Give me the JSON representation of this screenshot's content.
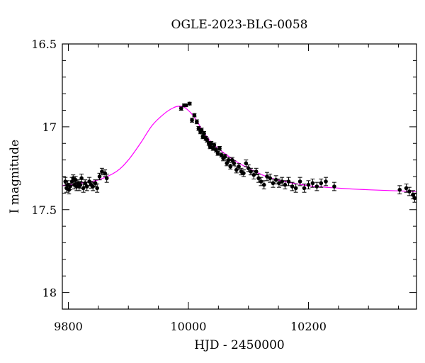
{
  "chart_data": {
    "type": "scatter",
    "title": "OGLE-2023-BLG-0058",
    "xlabel": "HJD - 2450000",
    "ylabel": "I magnitude",
    "xlim": [
      9790,
      10380
    ],
    "ylim": [
      18.1,
      16.5
    ],
    "y_inverted": true,
    "xticks": [
      9800,
      10000,
      10200
    ],
    "xtick_labels": [
      "9800",
      "10000",
      "10200"
    ],
    "yticks": [
      16.5,
      17,
      17.5,
      18
    ],
    "ytick_labels": [
      "16.5",
      "17",
      "17.5",
      "18"
    ],
    "grid": false,
    "colors": {
      "data": "#000000",
      "model": "#ff00ff"
    },
    "series": [
      {
        "kind": "observations",
        "x": [
          9795,
          9797,
          9799,
          9801,
          9803,
          9806,
          9808,
          9810,
          9812,
          9814,
          9816,
          9818,
          9820,
          9822,
          9825,
          9828,
          9831,
          9835,
          9838,
          9841,
          9845,
          9848,
          9852,
          9856,
          9861,
          9864,
          9988,
          9993,
          9996,
          10002,
          10006,
          10010,
          10014,
          10017,
          10020,
          10022,
          10024,
          10026,
          10029,
          10031,
          10034,
          10036,
          10038,
          10041,
          10043,
          10046,
          10049,
          10052,
          10055,
          10058,
          10061,
          10064,
          10067,
          10070,
          10073,
          10076,
          10080,
          10084,
          10088,
          10092,
          10096,
          10100,
          10104,
          10109,
          10113,
          10117,
          10121,
          10126,
          10131,
          10136,
          10141,
          10146,
          10151,
          10156,
          10161,
          10167,
          10173,
          10179,
          10186,
          10193,
          10200,
          10207,
          10214,
          10221,
          10229,
          10243,
          10352,
          10363,
          10368,
          10374,
          10377
        ],
        "y": [
          17.33,
          17.37,
          17.35,
          17.38,
          17.36,
          17.33,
          17.31,
          17.35,
          17.32,
          17.36,
          17.34,
          17.36,
          17.35,
          17.31,
          17.37,
          17.34,
          17.36,
          17.33,
          17.35,
          17.36,
          17.34,
          17.37,
          17.3,
          17.27,
          17.28,
          17.31,
          16.89,
          16.87,
          16.87,
          16.86,
          16.96,
          16.93,
          16.97,
          17.01,
          17.03,
          17.02,
          17.06,
          17.04,
          17.07,
          17.08,
          17.1,
          17.12,
          17.1,
          17.13,
          17.11,
          17.14,
          17.16,
          17.13,
          17.17,
          17.19,
          17.18,
          17.22,
          17.2,
          17.24,
          17.2,
          17.22,
          17.26,
          17.24,
          17.27,
          17.28,
          17.22,
          17.25,
          17.27,
          17.29,
          17.27,
          17.31,
          17.33,
          17.35,
          17.3,
          17.31,
          17.34,
          17.32,
          17.34,
          17.33,
          17.35,
          17.33,
          17.36,
          17.37,
          17.33,
          17.37,
          17.35,
          17.34,
          17.36,
          17.34,
          17.33,
          17.36,
          17.38,
          17.37,
          17.39,
          17.41,
          17.43
        ],
        "yerr": [
          0.025,
          0.025,
          0.025,
          0.025,
          0.02,
          0.025,
          0.02,
          0.025,
          0.02,
          0.025,
          0.02,
          0.025,
          0.02,
          0.025,
          0.025,
          0.02,
          0.025,
          0.025,
          0.02,
          0.025,
          0.02,
          0.025,
          0.02,
          0.02,
          0.02,
          0.025,
          0.01,
          0.008,
          0.008,
          0.008,
          0.012,
          0.01,
          0.012,
          0.012,
          0.012,
          0.012,
          0.012,
          0.012,
          0.012,
          0.012,
          0.012,
          0.012,
          0.012,
          0.012,
          0.012,
          0.012,
          0.012,
          0.012,
          0.012,
          0.015,
          0.015,
          0.015,
          0.015,
          0.015,
          0.015,
          0.015,
          0.018,
          0.018,
          0.02,
          0.02,
          0.02,
          0.02,
          0.02,
          0.025,
          0.02,
          0.025,
          0.025,
          0.025,
          0.025,
          0.025,
          0.025,
          0.025,
          0.025,
          0.025,
          0.025,
          0.025,
          0.025,
          0.025,
          0.025,
          0.025,
          0.025,
          0.025,
          0.025,
          0.025,
          0.025,
          0.025,
          0.025,
          0.025,
          0.025,
          0.025,
          0.025
        ]
      },
      {
        "kind": "model",
        "x": [
          9790,
          9820,
          9850,
          9880,
          9900,
          9920,
          9940,
          9960,
          9975,
          9985,
          9992,
          9998,
          10005,
          10015,
          10025,
          10040,
          10060,
          10080,
          10100,
          10130,
          10160,
          10200,
          10250,
          10300,
          10380
        ],
        "y": [
          17.355,
          17.34,
          17.32,
          17.27,
          17.2,
          17.1,
          16.99,
          16.92,
          16.885,
          16.875,
          16.88,
          16.895,
          16.92,
          16.97,
          17.03,
          17.1,
          17.16,
          17.21,
          17.25,
          17.3,
          17.33,
          17.355,
          17.37,
          17.38,
          17.39
        ]
      }
    ]
  }
}
